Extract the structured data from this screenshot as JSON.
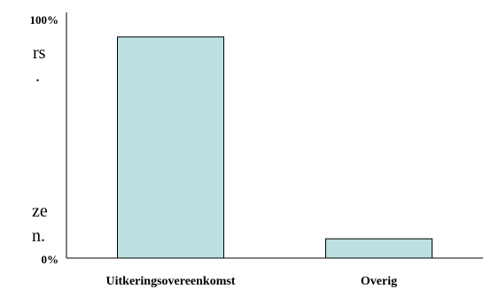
{
  "background_text": {
    "fragment_1": "rs",
    "fragment_2": "ze",
    "fragment_3": "n."
  },
  "chart_data": {
    "type": "bar",
    "categories": [
      "Uitkeringsovereenkomst",
      "Overig"
    ],
    "values": [
      92,
      8
    ],
    "y_tick_labels": [
      "0%",
      "100%"
    ],
    "ylim": [
      0,
      100
    ],
    "grid": false,
    "legend": "none",
    "bar_color": "#bde0e2"
  }
}
